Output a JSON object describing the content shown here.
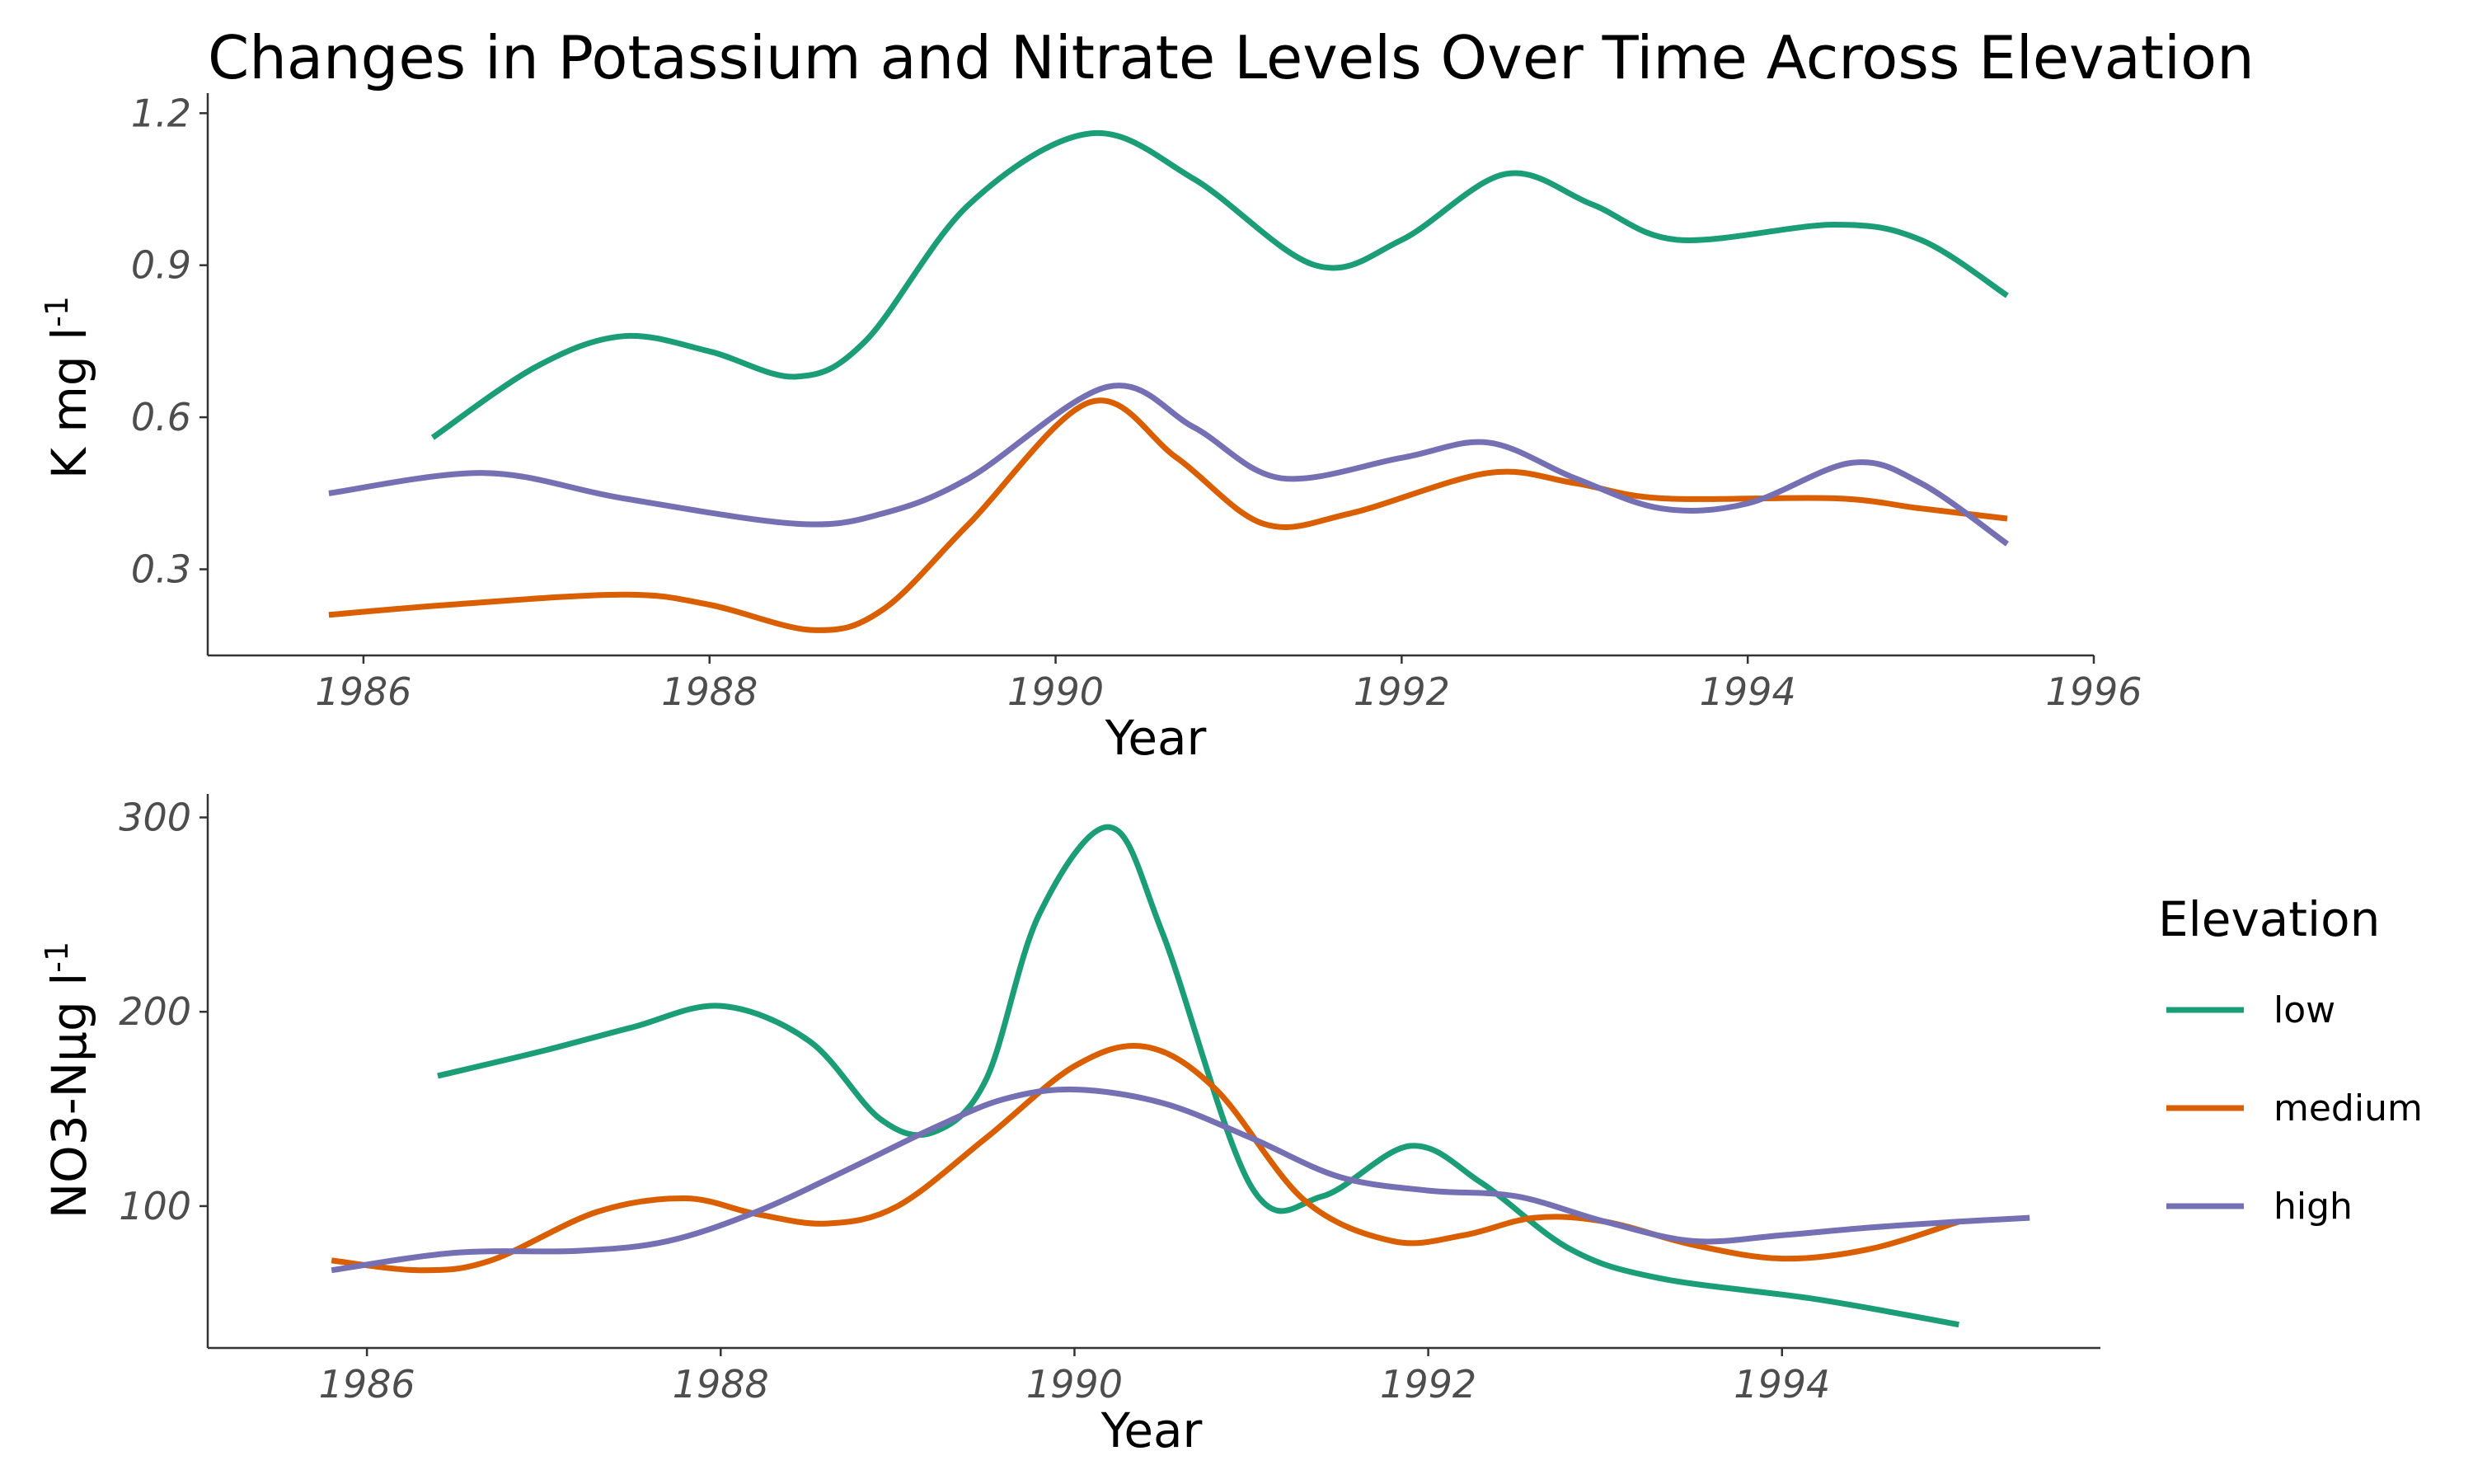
{
  "title": "Changes in Potassium and Nitrate Levels Over Time Across Elevation",
  "colors": {
    "low": "#1b9e77",
    "medium": "#d95f02",
    "high": "#7570b3",
    "axis": "#333333",
    "tick_text": "#4d4d4d"
  },
  "legend": {
    "title": "Elevation",
    "items": [
      {
        "label": "low",
        "color": "#1b9e77"
      },
      {
        "label": "medium",
        "color": "#d95f02"
      },
      {
        "label": "high",
        "color": "#7570b3"
      }
    ]
  },
  "chart_data": [
    {
      "type": "line",
      "xlabel": "Year",
      "ylabel": "K mg l",
      "ylabel_superscript": "-1",
      "xlim": [
        1985.1,
        1996.0
      ],
      "ylim": [
        0.13,
        1.22
      ],
      "xticks": [
        1986,
        1988,
        1990,
        1992,
        1994,
        1996
      ],
      "xtick_labels": [
        "1986",
        "1988",
        "1990",
        "1992",
        "1994",
        "1996"
      ],
      "yticks": [
        0.3,
        0.6,
        0.9,
        1.2
      ],
      "ytick_labels": [
        "0.3",
        "0.6",
        "0.9",
        "1.2"
      ],
      "grid": false,
      "series": [
        {
          "name": "low",
          "color": "#1b9e77",
          "x": [
            1986.4,
            1987.0,
            1987.5,
            1988.0,
            1988.5,
            1988.9,
            1989.5,
            1990.2,
            1990.8,
            1991.5,
            1992.0,
            1992.6,
            1993.1,
            1993.6,
            1994.5,
            1995.0,
            1995.5
          ],
          "y": [
            0.56,
            0.7,
            0.76,
            0.73,
            0.68,
            0.75,
            1.02,
            1.16,
            1.07,
            0.9,
            0.95,
            1.08,
            1.02,
            0.95,
            0.98,
            0.95,
            0.84
          ]
        },
        {
          "name": "medium",
          "color": "#d95f02",
          "x": [
            1985.8,
            1986.5,
            1987.5,
            1988.0,
            1988.6,
            1989.0,
            1989.5,
            1990.2,
            1990.7,
            1991.2,
            1991.7,
            1992.5,
            1993.0,
            1993.5,
            1994.5,
            1995.0,
            1995.5
          ],
          "y": [
            0.21,
            0.23,
            0.25,
            0.23,
            0.18,
            0.22,
            0.39,
            0.63,
            0.52,
            0.39,
            0.41,
            0.49,
            0.47,
            0.44,
            0.44,
            0.42,
            0.4
          ]
        },
        {
          "name": "high",
          "color": "#7570b3",
          "x": [
            1985.8,
            1986.7,
            1987.5,
            1988.5,
            1989.0,
            1989.5,
            1990.3,
            1990.8,
            1991.3,
            1992.0,
            1992.5,
            1993.0,
            1993.5,
            1994.0,
            1994.6,
            1995.0,
            1995.5
          ],
          "y": [
            0.45,
            0.49,
            0.44,
            0.39,
            0.41,
            0.48,
            0.66,
            0.58,
            0.48,
            0.52,
            0.55,
            0.48,
            0.42,
            0.43,
            0.51,
            0.47,
            0.35
          ]
        }
      ]
    },
    {
      "type": "line",
      "xlabel": "Year",
      "ylabel": "NO3-Nμg l",
      "ylabel_superscript": "-1",
      "xlim": [
        1985.1,
        1995.8
      ],
      "ylim": [
        27,
        307
      ],
      "xticks": [
        1986,
        1988,
        1990,
        1992,
        1994
      ],
      "xtick_labels": [
        "1986",
        "1988",
        "1990",
        "1992",
        "1994"
      ],
      "yticks": [
        100,
        200,
        300
      ],
      "ytick_labels": [
        "100",
        "200",
        "300"
      ],
      "grid": false,
      "series": [
        {
          "name": "low",
          "color": "#1b9e77",
          "x": [
            1986.4,
            1987.0,
            1987.5,
            1988.0,
            1988.5,
            1988.9,
            1989.2,
            1989.5,
            1989.8,
            1990.2,
            1990.5,
            1991.0,
            1991.4,
            1991.9,
            1992.3,
            1992.8,
            1993.3,
            1994.2,
            1995.0
          ],
          "y": [
            167,
            180,
            192,
            203,
            185,
            145,
            138,
            165,
            250,
            295,
            240,
            110,
            105,
            131,
            112,
            78,
            63,
            52,
            39
          ]
        },
        {
          "name": "medium",
          "color": "#d95f02",
          "x": [
            1985.8,
            1986.3,
            1986.7,
            1987.3,
            1987.8,
            1988.2,
            1988.6,
            1989.0,
            1989.5,
            1990.0,
            1990.4,
            1990.8,
            1991.3,
            1991.8,
            1992.2,
            1992.6,
            1993.0,
            1993.5,
            1994.0,
            1994.5,
            1995.0
          ],
          "y": [
            72,
            67,
            72,
            97,
            104,
            96,
            91,
            100,
            135,
            172,
            182,
            160,
            103,
            82,
            85,
            94,
            92,
            80,
            73,
            78,
            92
          ]
        },
        {
          "name": "high",
          "color": "#7570b3",
          "x": [
            1985.8,
            1986.5,
            1987.2,
            1987.7,
            1988.2,
            1988.7,
            1989.2,
            1989.6,
            1990.0,
            1990.5,
            1991.0,
            1991.5,
            1992.0,
            1992.5,
            1993.0,
            1993.5,
            1994.0,
            1994.5,
            1995.0,
            1995.4
          ],
          "y": [
            67,
            76,
            77,
            82,
            97,
            118,
            140,
            155,
            160,
            153,
            135,
            115,
            108,
            105,
            92,
            82,
            85,
            89,
            92,
            94
          ]
        }
      ]
    }
  ]
}
